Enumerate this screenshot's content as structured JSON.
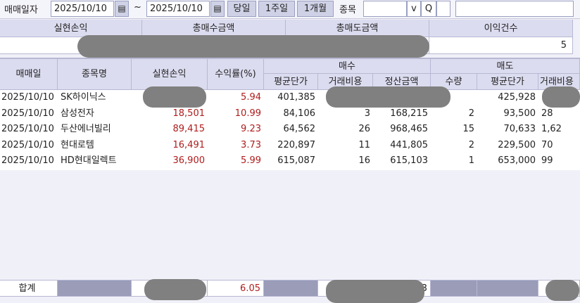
{
  "filter": {
    "date_label": "매매일자",
    "start_date": "2025/10/10",
    "tilde": "~",
    "end_date": "2025/10/10",
    "btn_today": "당일",
    "btn_week": "1주일",
    "btn_month": "1개월",
    "stock_label": "종목",
    "dropdown_icon": "v",
    "search_icon": "Q"
  },
  "summary": {
    "headers": [
      "실현손익",
      "총매수금액",
      "총매도금액",
      "이익건수"
    ],
    "profit_count": "5"
  },
  "table": {
    "headers": {
      "date": "매매일",
      "name": "종목명",
      "pnl": "실현손익",
      "rate": "수익률(%)",
      "buy": "매수",
      "sell": "매도",
      "buy_avg": "평균단가",
      "buy_fee": "거래비용",
      "buy_settle": "정산금액",
      "sell_qty": "수량",
      "sell_avg": "평균단가",
      "sell_fee": "거래비용"
    },
    "rows": [
      {
        "date": "2025/10/10",
        "name": "SK하이닉스",
        "pnl": "",
        "rate": "5.94",
        "buy_avg": "401,385",
        "buy_fee": "",
        "buy_settle": "",
        "sell_qty": "",
        "sell_avg": "425,928",
        "sell_fee": ""
      },
      {
        "date": "2025/10/10",
        "name": "삼성전자",
        "pnl": "18,501",
        "rate": "10.99",
        "buy_avg": "84,106",
        "buy_fee": "3",
        "buy_settle": "168,215",
        "sell_qty": "2",
        "sell_avg": "93,500",
        "sell_fee": "28"
      },
      {
        "date": "2025/10/10",
        "name": "두산에너빌리",
        "pnl": "89,415",
        "rate": "9.23",
        "buy_avg": "64,562",
        "buy_fee": "26",
        "buy_settle": "968,465",
        "sell_qty": "15",
        "sell_avg": "70,633",
        "sell_fee": "1,62"
      },
      {
        "date": "2025/10/10",
        "name": "현대로템",
        "pnl": "16,491",
        "rate": "3.73",
        "buy_avg": "220,897",
        "buy_fee": "11",
        "buy_settle": "441,805",
        "sell_qty": "2",
        "sell_avg": "229,500",
        "sell_fee": "70"
      },
      {
        "date": "2025/10/10",
        "name": "HD현대일렉트",
        "pnl": "36,900",
        "rate": "5.99",
        "buy_avg": "615,087",
        "buy_fee": "16",
        "buy_settle": "615,103",
        "sell_qty": "1",
        "sell_avg": "653,000",
        "sell_fee": "99"
      }
    ]
  },
  "footer": {
    "label": "합계",
    "rate": "6.05",
    "partial": "3"
  },
  "colors": {
    "profit": "#b01c1c",
    "header_bg": "#dcdcf0",
    "redaction": "#808080"
  }
}
